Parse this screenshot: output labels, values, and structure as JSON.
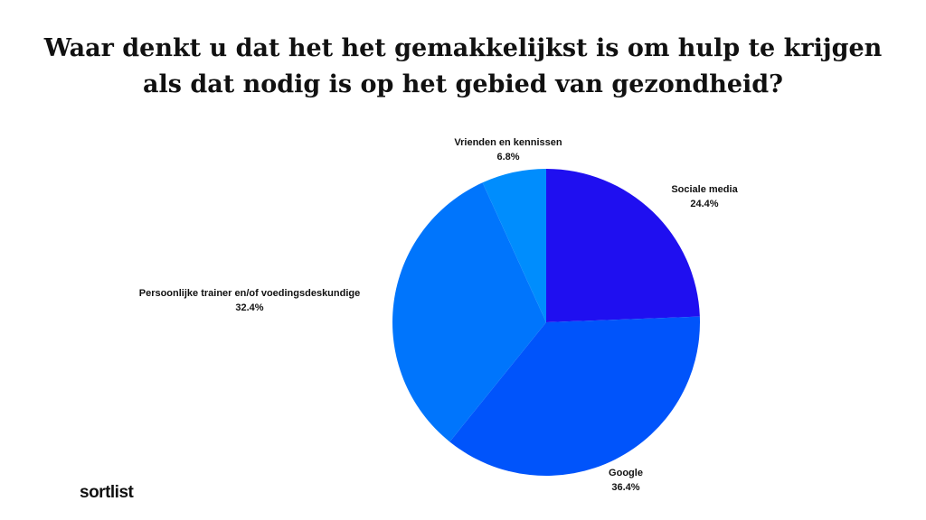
{
  "title_lines": [
    "Waar denkt u dat het het gemakkelijkst is om hulp te krijgen",
    "als dat nodig is op het gebied van gezondheid?"
  ],
  "brand": "sortlist",
  "chart_data": {
    "type": "pie",
    "title": "Waar denkt u dat het het gemakkelijkst is om hulp te krijgen als dat nodig is op het gebied van gezondheid?",
    "start": "12 o'clock",
    "direction": "clockwise",
    "slices": [
      {
        "label": "Sociale media",
        "value": 24.4,
        "value_label": "24.4%",
        "color": "#1f0ff0"
      },
      {
        "label": "Google",
        "value": 36.4,
        "value_label": "36.4%",
        "color": "#0054fb"
      },
      {
        "label": "Persoonlijke trainer en/of voedingsdeskundige",
        "value": 32.4,
        "value_label": "32.4%",
        "color": "#0075fc"
      },
      {
        "label": "Vrienden en kennissen",
        "value": 6.8,
        "value_label": "6.8%",
        "color": "#008dfd"
      }
    ]
  }
}
